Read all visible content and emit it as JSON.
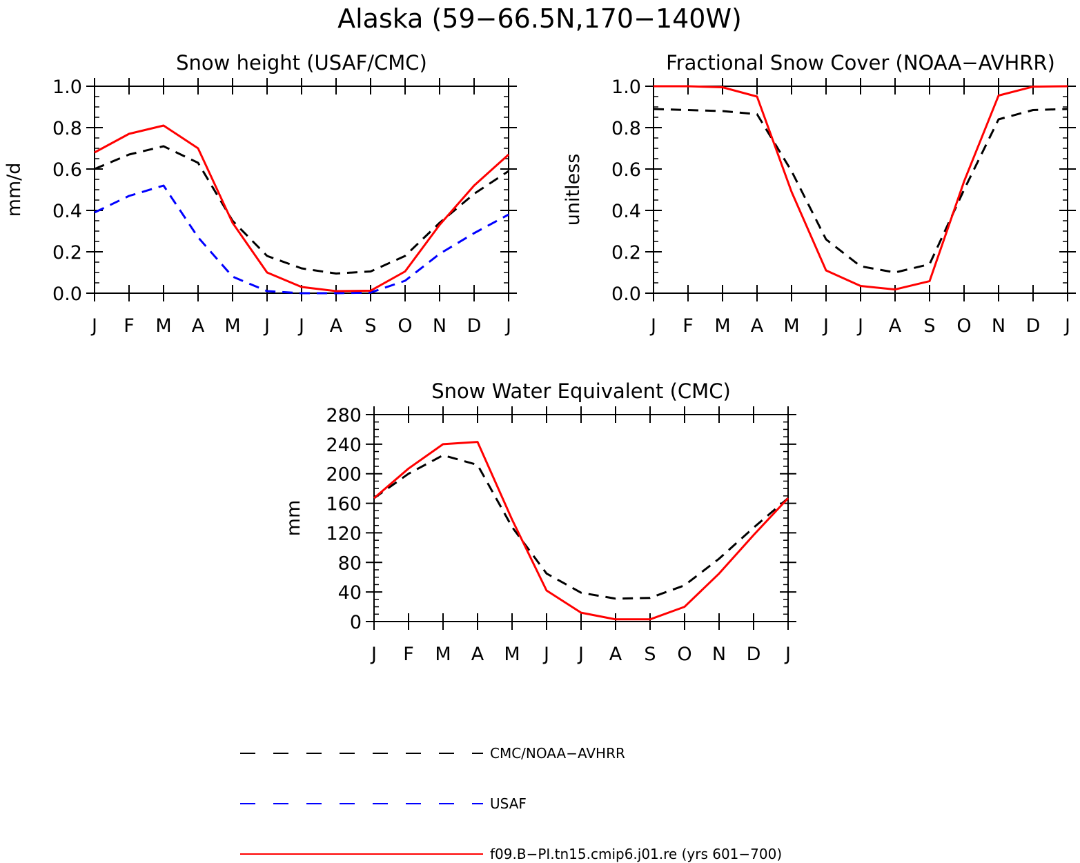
{
  "figure": {
    "title": "Alaska (59−66.5N,170−140W)"
  },
  "legend": [
    {
      "label": "CMC/NOAA−AVHRR",
      "color": "#000000",
      "dash": "dashed"
    },
    {
      "label": "USAF",
      "color": "#0000ff",
      "dash": "dashed"
    },
    {
      "label": "f09.B−PI.tn15.cmip6.j01.re (yrs 601−700)",
      "color": "#ff0000",
      "dash": "solid"
    }
  ],
  "chart_data": [
    {
      "type": "line",
      "title": "Snow height (USAF/CMC)",
      "xlabel": "",
      "ylabel": "mm/d",
      "categories": [
        "J",
        "F",
        "M",
        "A",
        "M",
        "J",
        "J",
        "A",
        "S",
        "O",
        "N",
        "D",
        "J"
      ],
      "ylim": [
        0,
        1.0
      ],
      "yticks": [
        0,
        0.2,
        0.4,
        0.6,
        0.8,
        1.0
      ],
      "ytick_labels": [
        "0.0",
        "0.2",
        "0.4",
        "0.6",
        "0.8",
        "1.0"
      ],
      "series": [
        {
          "name": "CMC/NOAA−AVHRR",
          "color": "#000000",
          "dash": "dashed",
          "values": [
            0.6,
            0.67,
            0.71,
            0.63,
            0.35,
            0.18,
            0.12,
            0.095,
            0.105,
            0.18,
            0.34,
            0.48,
            0.59
          ]
        },
        {
          "name": "USAF",
          "color": "#0000ff",
          "dash": "dashed",
          "values": [
            0.39,
            0.47,
            0.52,
            0.27,
            0.08,
            0.01,
            0.0,
            0.0,
            0.003,
            0.06,
            0.19,
            0.29,
            0.38
          ]
        },
        {
          "name": "f09.B−PI.tn15.cmip6.j01.re (yrs 601−700)",
          "color": "#ff0000",
          "dash": "solid",
          "values": [
            0.68,
            0.77,
            0.81,
            0.7,
            0.34,
            0.1,
            0.03,
            0.01,
            0.012,
            0.105,
            0.33,
            0.52,
            0.67
          ]
        }
      ]
    },
    {
      "type": "line",
      "title": "Fractional Snow Cover (NOAA−AVHRR)",
      "xlabel": "",
      "ylabel": "unitless",
      "categories": [
        "J",
        "F",
        "M",
        "A",
        "M",
        "J",
        "J",
        "A",
        "S",
        "O",
        "N",
        "D",
        "J"
      ],
      "ylim": [
        0,
        1.0
      ],
      "yticks": [
        0,
        0.2,
        0.4,
        0.6,
        0.8,
        1.0
      ],
      "ytick_labels": [
        "0.0",
        "0.2",
        "0.4",
        "0.6",
        "0.8",
        "1.0"
      ],
      "series": [
        {
          "name": "CMC/NOAA−AVHRR",
          "color": "#000000",
          "dash": "dashed",
          "values": [
            0.89,
            0.885,
            0.88,
            0.865,
            0.59,
            0.26,
            0.13,
            0.1,
            0.14,
            0.5,
            0.84,
            0.885,
            0.89
          ]
        },
        {
          "name": "f09.B−PI.tn15.cmip6.j01.re (yrs 601−700)",
          "color": "#ff0000",
          "dash": "solid",
          "values": [
            1.0,
            1.0,
            0.995,
            0.95,
            0.49,
            0.11,
            0.035,
            0.018,
            0.058,
            0.54,
            0.955,
            0.998,
            1.0
          ]
        }
      ]
    },
    {
      "type": "line",
      "title": "Snow Water Equivalent (CMC)",
      "xlabel": "",
      "ylabel": "mm",
      "categories": [
        "J",
        "F",
        "M",
        "A",
        "M",
        "J",
        "J",
        "A",
        "S",
        "O",
        "N",
        "D",
        "J"
      ],
      "ylim": [
        0,
        280
      ],
      "yticks": [
        0,
        40,
        80,
        120,
        160,
        200,
        240,
        280
      ],
      "ytick_labels": [
        "0",
        "40",
        "80",
        "120",
        "160",
        "200",
        "240",
        "280"
      ],
      "series": [
        {
          "name": "CMC/NOAA−AVHRR",
          "color": "#000000",
          "dash": "dashed",
          "values": [
            167,
            200,
            225,
            212,
            128,
            65,
            39,
            31,
            32,
            49,
            85,
            127,
            167
          ]
        },
        {
          "name": "f09.B−PI.tn15.cmip6.j01.re (yrs 601−700)",
          "color": "#ff0000",
          "dash": "solid",
          "values": [
            167,
            207,
            240,
            243,
            138,
            42,
            12,
            3,
            3,
            20,
            65,
            117,
            167
          ]
        }
      ]
    }
  ]
}
